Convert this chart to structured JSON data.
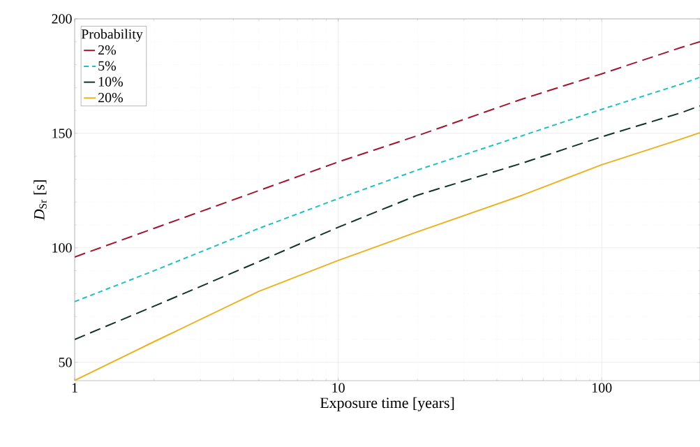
{
  "chart_data": {
    "type": "line",
    "xlabel": "Exposure time [years]",
    "ylabel": "*D*$_{Sr}$ [s]",
    "legend_title": "Probability",
    "x": [
      1,
      2,
      5,
      10,
      20,
      50,
      100,
      200,
      236
    ],
    "series": [
      {
        "name": "2%",
        "color": "#a2142f",
        "line_style": "dashed",
        "values": [
          96,
          108.5,
          125,
          137.5,
          149,
          165,
          176,
          187.5,
          190
        ]
      },
      {
        "name": "5%",
        "color": "#20c0c0",
        "line_style": "dotted",
        "values": [
          76.5,
          90,
          108.5,
          121.5,
          134,
          149,
          160.5,
          171.5,
          174.5
        ]
      },
      {
        "name": "10%",
        "color": "#0f3326",
        "line_style": "dashed",
        "values": [
          60,
          74.5,
          94,
          109,
          123,
          137,
          148.5,
          159,
          162
        ]
      },
      {
        "name": "20%",
        "color": "#edb120",
        "line_style": "solid",
        "values": [
          42.1,
          59,
          81,
          94.5,
          107,
          123,
          136.3,
          147.5,
          150.3
        ]
      }
    ],
    "xlim": [
      1,
      236
    ],
    "ylim": [
      42,
      200
    ],
    "xticks": [
      1,
      10,
      100
    ],
    "yticks": [
      50,
      100,
      150,
      200
    ],
    "log": "x",
    "grid": true,
    "legend": "top left"
  }
}
